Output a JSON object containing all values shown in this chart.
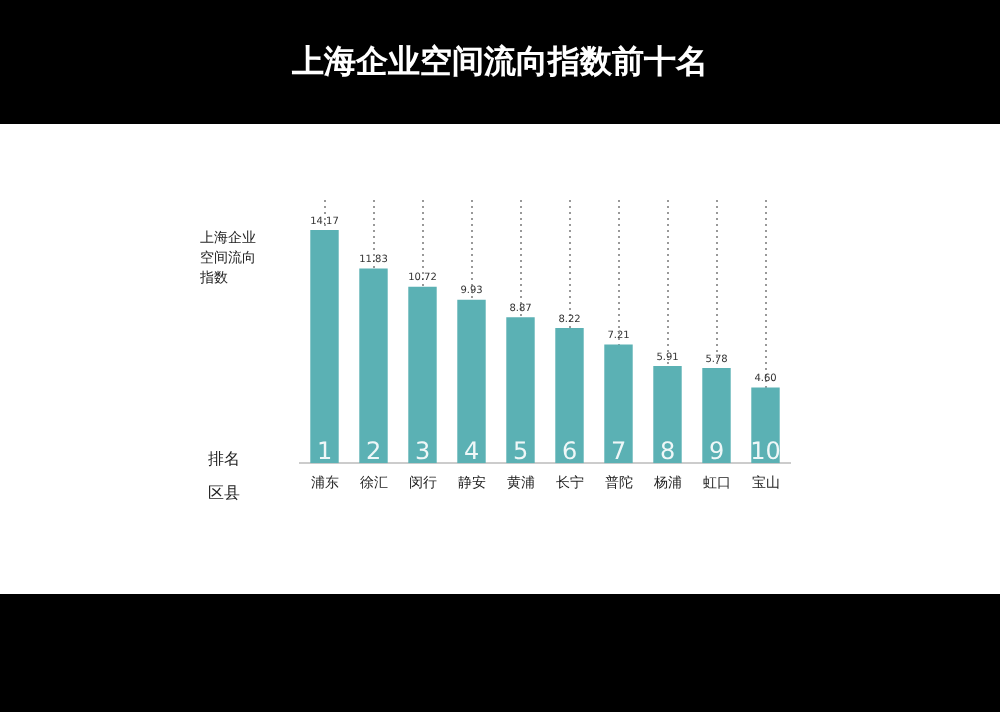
{
  "chart_data": {
    "type": "bar",
    "title": "上海企业空间流向指数前十名",
    "ylabel": "上海企业空间流向指数",
    "categories": [
      "浦东",
      "徐汇",
      "闵行",
      "静安",
      "黄浦",
      "长宁",
      "普陀",
      "杨浦",
      "虹口",
      "宝山"
    ],
    "values": [
      14.17,
      11.83,
      10.72,
      9.93,
      8.87,
      8.22,
      7.21,
      5.91,
      5.78,
      4.6
    ],
    "value_labels": [
      "14.17",
      "11.83",
      "10.72",
      "9.93",
      "8.87",
      "8.22",
      "7.21",
      "5.91",
      "5.78",
      "4.60"
    ],
    "color": "#5bb1b4",
    "grid": "x",
    "tick_labels": "x",
    "annotations": [
      "排名",
      "区县",
      {
        "text": "1",
        "x": "浦东",
        "y": 0
      },
      {
        "text": "2",
        "x": "徐汇",
        "y": 0
      },
      {
        "text": "3",
        "x": "闵行",
        "y": 0
      },
      {
        "text": "4",
        "x": "静安",
        "y": 0
      },
      {
        "text": "5",
        "x": "黄浦",
        "y": 0
      },
      {
        "text": "6",
        "x": "长宁",
        "y": 0
      },
      {
        "text": "7",
        "x": "普陀",
        "y": 0
      },
      {
        "text": "8",
        "x": "杨浦",
        "y": 0
      },
      {
        "text": "9",
        "x": "虹口",
        "y": 0
      },
      {
        "text": "10",
        "x": "宝山",
        "y": 0
      }
    ]
  }
}
